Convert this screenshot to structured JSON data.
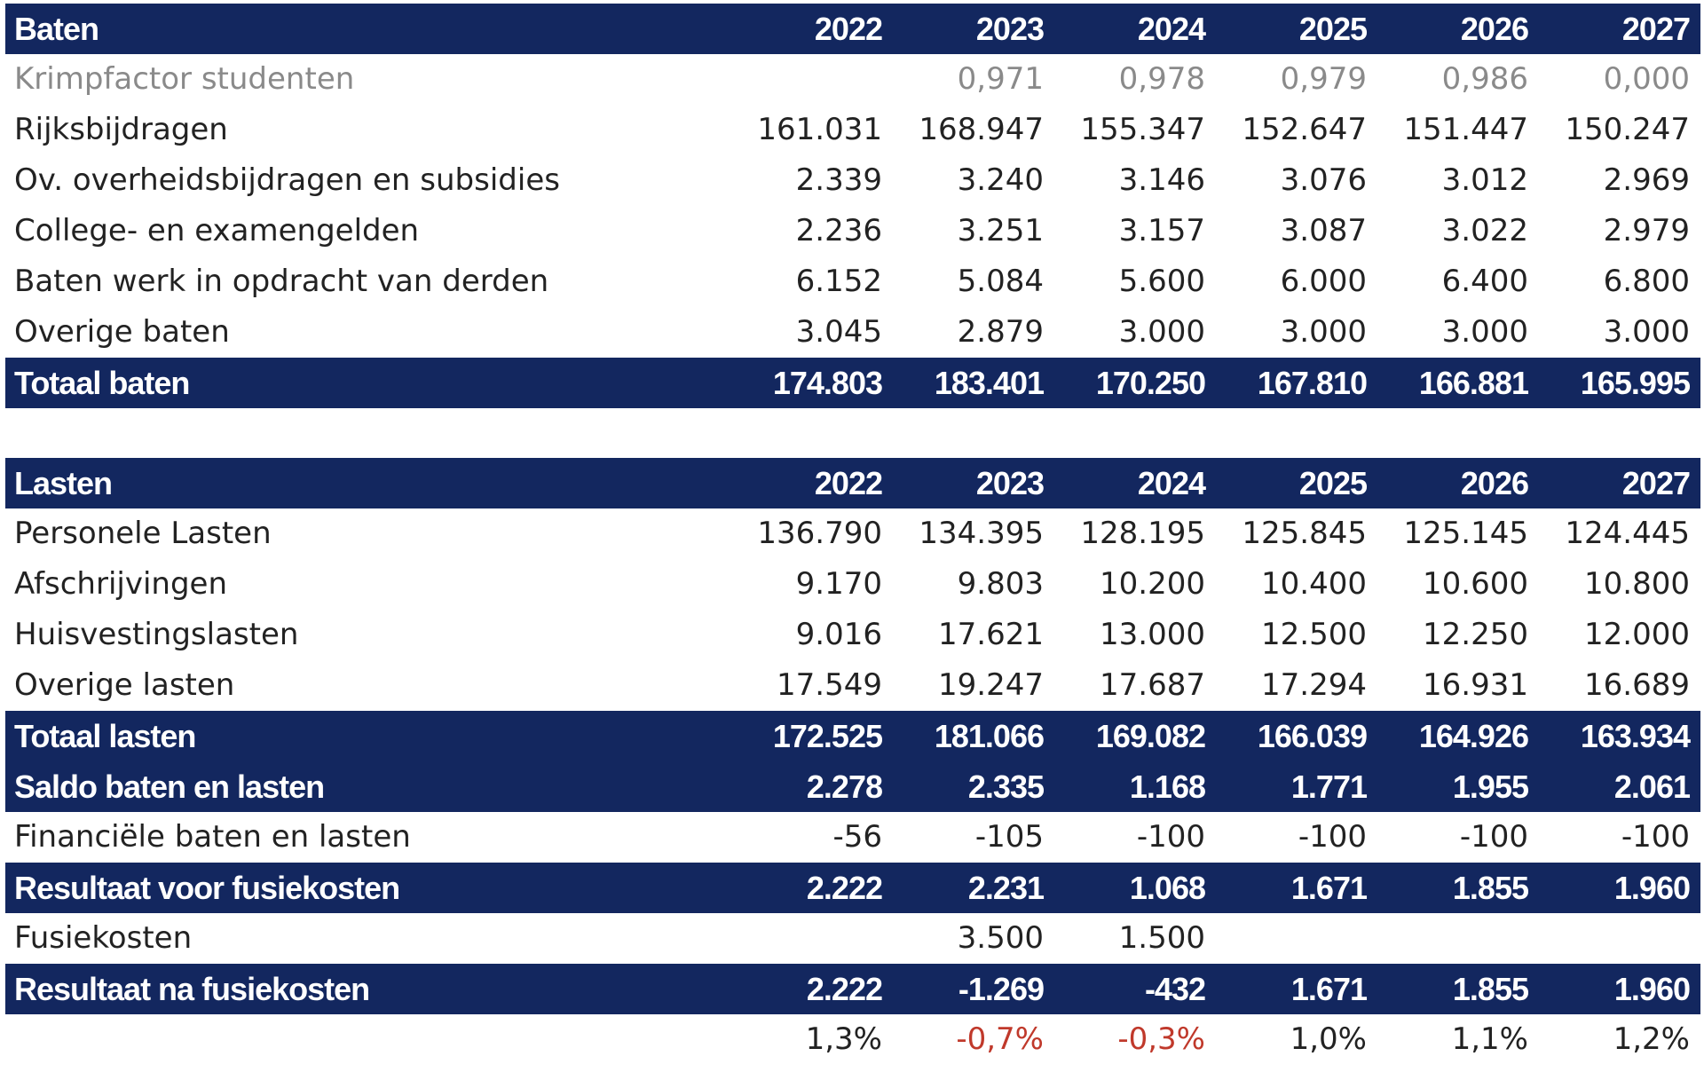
{
  "baten": {
    "header": {
      "label": "Baten",
      "years": [
        "2022",
        "2023",
        "2024",
        "2025",
        "2026",
        "2027"
      ]
    },
    "rows": [
      {
        "label": "Krimpfactor studenten",
        "values": [
          "",
          "0,971",
          "0,978",
          "0,979",
          "0,986",
          "0,000"
        ]
      },
      {
        "label": "Rijksbijdragen",
        "values": [
          "161.031",
          "168.947",
          "155.347",
          "152.647",
          "151.447",
          "150.247"
        ]
      },
      {
        "label": "Ov. overheidsbijdragen en subsidies",
        "values": [
          "2.339",
          "3.240",
          "3.146",
          "3.076",
          "3.012",
          "2.969"
        ]
      },
      {
        "label": "College- en examengelden",
        "values": [
          "2.236",
          "3.251",
          "3.157",
          "3.087",
          "3.022",
          "2.979"
        ]
      },
      {
        "label": "Baten werk in opdracht van derden",
        "values": [
          "6.152",
          "5.084",
          "5.600",
          "6.000",
          "6.400",
          "6.800"
        ]
      },
      {
        "label": "Overige baten",
        "values": [
          "3.045",
          "2.879",
          "3.000",
          "3.000",
          "3.000",
          "3.000"
        ]
      }
    ],
    "total": {
      "label": "Totaal baten",
      "values": [
        "174.803",
        "183.401",
        "170.250",
        "167.810",
        "166.881",
        "165.995"
      ]
    }
  },
  "lasten": {
    "header": {
      "label": "Lasten",
      "years": [
        "2022",
        "2023",
        "2024",
        "2025",
        "2026",
        "2027"
      ]
    },
    "rows": [
      {
        "label": "Personele Lasten",
        "values": [
          "136.790",
          "134.395",
          "128.195",
          "125.845",
          "125.145",
          "124.445"
        ]
      },
      {
        "label": "Afschrijvingen",
        "values": [
          "9.170",
          "9.803",
          "10.200",
          "10.400",
          "10.600",
          "10.800"
        ]
      },
      {
        "label": "Huisvestingslasten",
        "values": [
          "9.016",
          "17.621",
          "13.000",
          "12.500",
          "12.250",
          "12.000"
        ]
      },
      {
        "label": "Overige lasten",
        "values": [
          "17.549",
          "19.247",
          "17.687",
          "17.294",
          "16.931",
          "16.689"
        ]
      }
    ],
    "total": {
      "label": "Totaal lasten",
      "values": [
        "172.525",
        "181.066",
        "169.082",
        "166.039",
        "164.926",
        "163.934"
      ]
    }
  },
  "saldo": {
    "label": "Saldo baten en lasten",
    "values": [
      "2.278",
      "2.335",
      "1.168",
      "1.771",
      "1.955",
      "2.061"
    ]
  },
  "financiele": {
    "label": "Financiële baten en lasten",
    "values": [
      "-56",
      "-105",
      "-100",
      "-100",
      "-100",
      "-100"
    ]
  },
  "resultaat_voor": {
    "label": "Resultaat voor fusiekosten",
    "values": [
      "2.222",
      "2.231",
      "1.068",
      "1.671",
      "1.855",
      "1.960"
    ]
  },
  "fusiekosten": {
    "label": "Fusiekosten",
    "values": [
      "",
      "3.500",
      "1.500",
      "",
      "",
      ""
    ]
  },
  "resultaat_na": {
    "label": "Resultaat na fusiekosten",
    "values": [
      "2.222",
      "-1.269",
      "-432",
      "1.671",
      "1.855",
      "1.960"
    ]
  },
  "percentages": {
    "values": [
      "1,3%",
      "-0,7%",
      "-0,3%",
      "1,0%",
      "1,1%",
      "1,2%"
    ]
  },
  "colors": {
    "band": "#13275f",
    "negative_percentage": "#c0392b",
    "muted_text": "#8a8a8a"
  }
}
